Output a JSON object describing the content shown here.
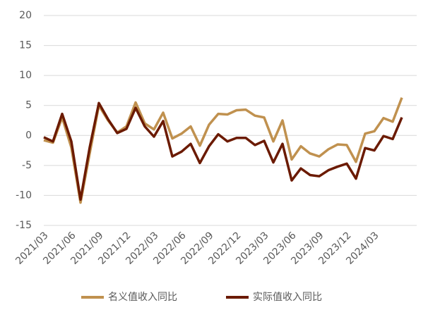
{
  "chart_data": {
    "type": "line",
    "categories": [
      "2021/03",
      null,
      null,
      "2021/06",
      null,
      null,
      "2021/09",
      null,
      null,
      "2021/12",
      null,
      null,
      "2022/03",
      null,
      null,
      "2022/06",
      null,
      null,
      "2022/09",
      null,
      null,
      "2022/12",
      null,
      null,
      "2023/03",
      null,
      null,
      "2023/06",
      null,
      null,
      "2023/09",
      null,
      null,
      "2023/12",
      null,
      null,
      "2024/03",
      null,
      null,
      null
    ],
    "series": [
      {
        "name": "名义值收入同比",
        "color": "#c0914f",
        "values": [
          -0.8,
          -1.2,
          3.0,
          -2,
          -11.2,
          -3,
          5,
          2.5,
          0.5,
          1.5,
          5.5,
          2,
          1,
          3.8,
          -0.5,
          0.3,
          1.5,
          -1.7,
          1.8,
          3.6,
          3.5,
          4.2,
          4.3,
          3.3,
          3.0,
          -1,
          2.5,
          -4,
          -1.8,
          -3,
          -3.5,
          -2.3,
          -1.5,
          -1.6,
          -4.4,
          0.3,
          0.7,
          2.9,
          2.3,
          6.3
        ]
      },
      {
        "name": "实际值收入同比",
        "color": "#6b1a00",
        "values": [
          -0.3,
          -1,
          3.6,
          -1,
          -10.7,
          -2,
          5.4,
          2.7,
          0.4,
          1.1,
          4.6,
          1.5,
          -0.2,
          2.4,
          -3.5,
          -2.7,
          -1.4,
          -4.6,
          -1.8,
          0.2,
          -1,
          -0.4,
          -0.4,
          -1.6,
          -0.9,
          -4.5,
          -1.4,
          -7.5,
          -5.5,
          -6.6,
          -6.8,
          -5.8,
          -5.2,
          -4.7,
          -7.2,
          -2.1,
          -2.5,
          -0.1,
          -0.6,
          3.0
        ]
      }
    ],
    "ylim": [
      -15,
      20
    ],
    "yticks": [
      -15,
      -10,
      -5,
      0,
      5,
      10,
      15,
      20
    ],
    "grid": true,
    "legend": "bottom"
  }
}
